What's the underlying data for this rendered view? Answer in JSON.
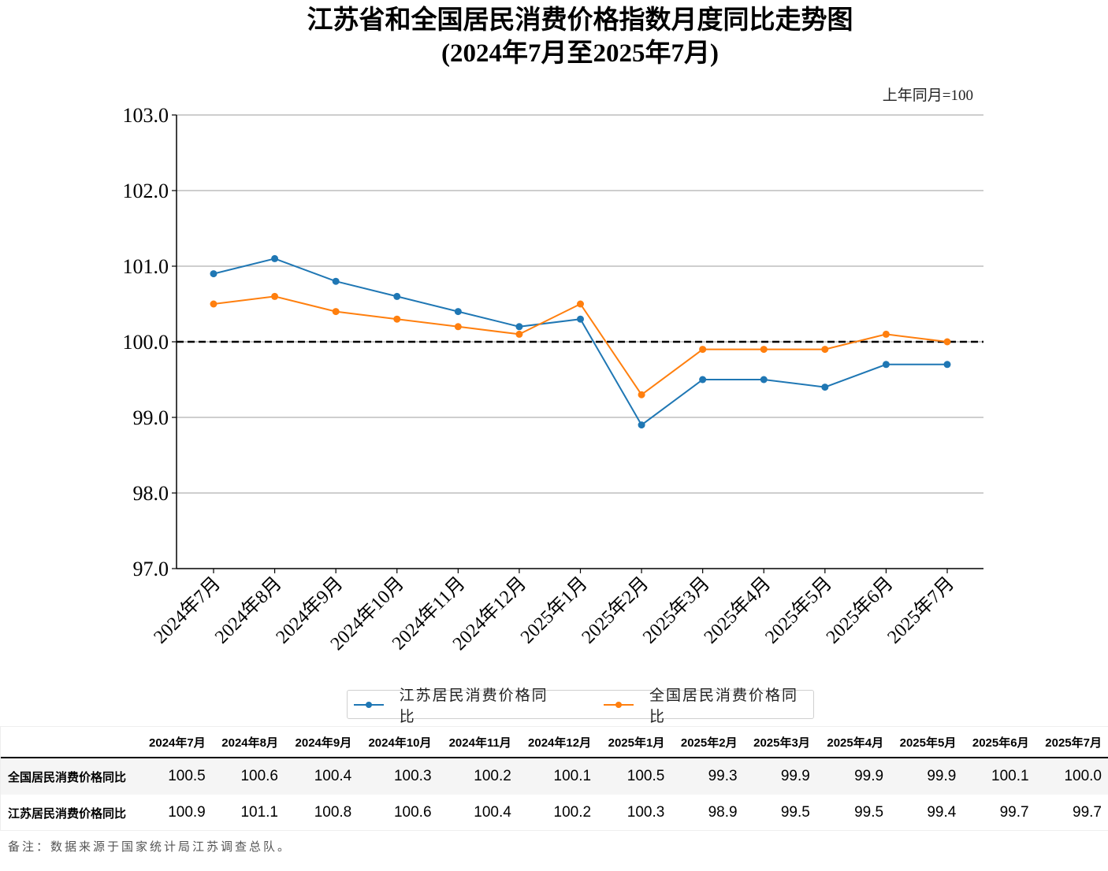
{
  "chart_data": {
    "type": "line",
    "title": "江苏省和全国居民消费价格指数月度同比走势图",
    "subtitle": "(2024年7月至2025年7月)",
    "unit_note": "上年同月=100",
    "xlabel": "",
    "ylabel": "",
    "ylim": [
      97.0,
      103.0
    ],
    "yticks": [
      "97.0",
      "98.0",
      "99.0",
      "100.0",
      "101.0",
      "102.0",
      "103.0"
    ],
    "reference_line": 100.0,
    "grid": "y",
    "legend_position": "bottom-center",
    "categories": [
      "2024年7月",
      "2024年8月",
      "2024年9月",
      "2024年10月",
      "2024年11月",
      "2024年12月",
      "2025年1月",
      "2025年2月",
      "2025年3月",
      "2025年4月",
      "2025年5月",
      "2025年6月",
      "2025年7月"
    ],
    "series": [
      {
        "name": "江苏居民消费价格同比",
        "color": "#1f77b4",
        "values": [
          100.9,
          101.1,
          100.8,
          100.6,
          100.4,
          100.2,
          100.3,
          98.9,
          99.5,
          99.5,
          99.4,
          99.7,
          99.7
        ]
      },
      {
        "name": "全国居民消费价格同比",
        "color": "#ff7f0e",
        "values": [
          100.5,
          100.6,
          100.4,
          100.3,
          100.2,
          100.1,
          100.5,
          99.3,
          99.9,
          99.9,
          99.9,
          100.1,
          100.0
        ]
      }
    ]
  },
  "table": {
    "headers": [
      "2024年7月",
      "2024年8月",
      "2024年9月",
      "2024年10月",
      "2024年11月",
      "2024年12月",
      "2025年1月",
      "2025年2月",
      "2025年3月",
      "2025年4月",
      "2025年5月",
      "2025年6月",
      "2025年7月"
    ],
    "rows": [
      {
        "label": "全国居民消费价格同比",
        "cells": [
          "100.5",
          "100.6",
          "100.4",
          "100.3",
          "100.2",
          "100.1",
          "100.5",
          "99.3",
          "99.9",
          "99.9",
          "99.9",
          "100.1",
          "100.0"
        ]
      },
      {
        "label": "江苏居民消费价格同比",
        "cells": [
          "100.9",
          "101.1",
          "100.8",
          "100.6",
          "100.4",
          "100.2",
          "100.3",
          "98.9",
          "99.5",
          "99.5",
          "99.4",
          "99.7",
          "99.7"
        ]
      }
    ]
  },
  "note": "备注：数据来源于国家统计局江苏调查总队。"
}
